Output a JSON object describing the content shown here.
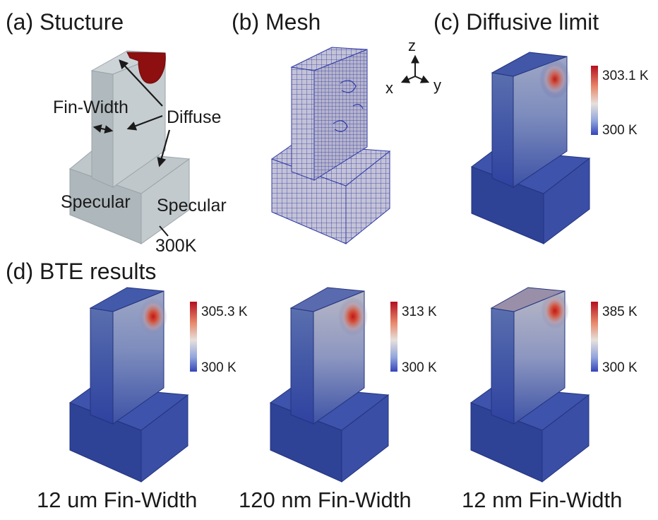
{
  "panels": {
    "a": {
      "title": "(a) Stucture",
      "annotations": {
        "fin_width": "Fin-Width",
        "diffuse": "Diffuse",
        "specular_left": "Specular",
        "specular_right": "Specular",
        "boundary_temp": "300K"
      }
    },
    "b": {
      "title": "(b) Mesh"
    },
    "c": {
      "title": "(c) Diffusive limit",
      "colorbar": {
        "max": "303.1 K",
        "min": "300 K"
      }
    },
    "d": {
      "title": "(d) BTE results",
      "cases": [
        {
          "caption": "12 um Fin-Width",
          "colorbar": {
            "max": "305.3 K",
            "min": "300 K"
          }
        },
        {
          "caption": "120 nm Fin-Width",
          "colorbar": {
            "max": "313 K",
            "min": "300 K"
          }
        },
        {
          "caption": "12 nm Fin-Width",
          "colorbar": {
            "max": "385 K",
            "min": "300 K"
          }
        }
      ]
    }
  },
  "axes": {
    "z": "z",
    "x": "x",
    "y": "y"
  },
  "colors": {
    "structure": "#b3bcc0",
    "mesh_line": "#2f3aa6",
    "cold": "#2f46a6",
    "hot": "#b01515",
    "heat_source": "#8e0f0f"
  }
}
